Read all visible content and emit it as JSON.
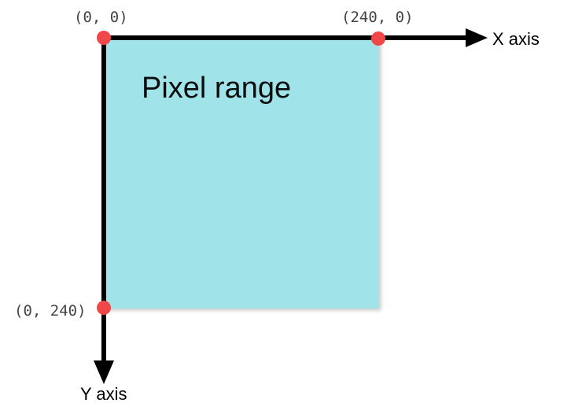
{
  "colors": {
    "region_fill": "#a0e4e9",
    "axis": "#000000",
    "point": "#f04848",
    "label_text": "#444444"
  },
  "region": {
    "title": "Pixel range"
  },
  "axes": {
    "x_label": "X axis",
    "y_label": "Y axis"
  },
  "points": {
    "origin": "(0, 0)",
    "x_end": "(240, 0)",
    "y_end": "(0, 240)"
  }
}
